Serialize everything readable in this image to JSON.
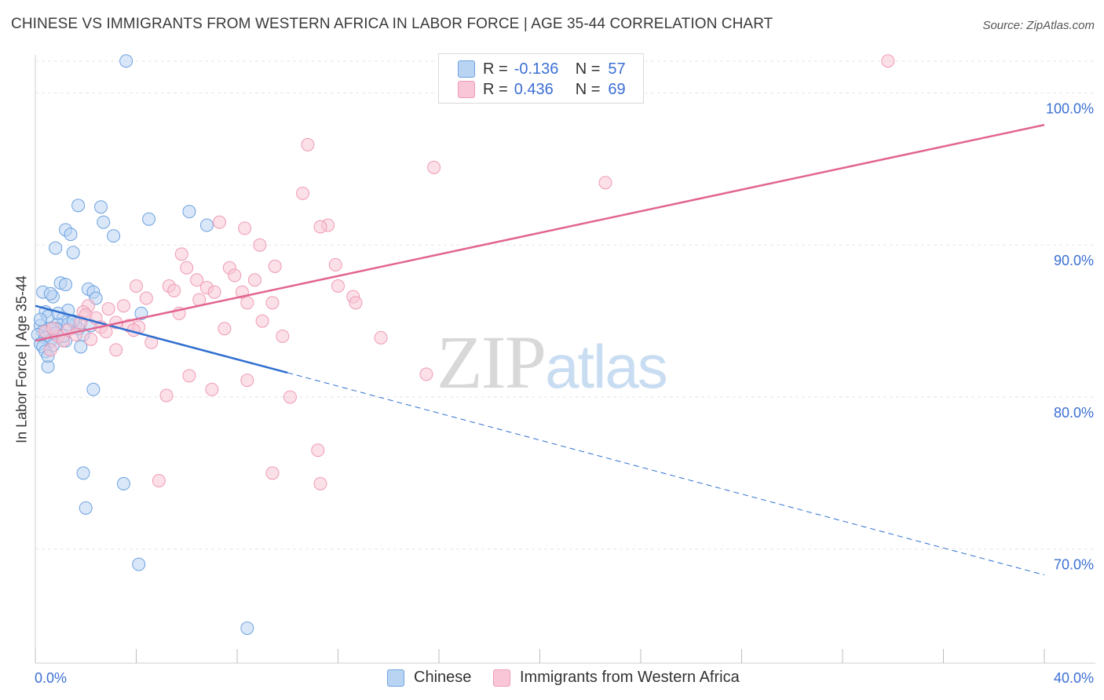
{
  "title": "CHINESE VS IMMIGRANTS FROM WESTERN AFRICA IN LABOR FORCE | AGE 35-44 CORRELATION CHART",
  "source": "Source: ZipAtlas.com",
  "watermark": {
    "zip": "ZIP",
    "atlas": "atlas"
  },
  "legend": {
    "r_label": "R =",
    "n_label": "N =",
    "rows": [
      {
        "r": "-0.136",
        "n": "57"
      },
      {
        "r": "0.436",
        "n": "69"
      }
    ]
  },
  "chart_data": {
    "type": "scatter",
    "xlabel": "",
    "ylabel": "In Labor Force | Age 35-44",
    "xlim": [
      0,
      40
    ],
    "ylim": [
      60,
      100
    ],
    "x_tick_labels": [
      {
        "value": 0,
        "label": "0.0%"
      },
      {
        "value": 40,
        "label": "40.0%"
      }
    ],
    "y_tick_labels": [
      {
        "value": 97.5,
        "label": "100.0%"
      },
      {
        "value": 87.5,
        "label": "90.0%"
      },
      {
        "value": 77.5,
        "label": "80.0%"
      },
      {
        "value": 67.5,
        "label": "70.0%"
      }
    ],
    "grid": true,
    "legend_position": "top-center",
    "series": [
      {
        "name": "Chinese",
        "color": "#6fa3e0",
        "fill": "#b9d3f3",
        "line_color": "#2f6fd0",
        "trend": {
          "x0": 0,
          "y0": 83.5,
          "x1": 10,
          "y1": 79.1,
          "dashed_to_x": 40,
          "dashed_y1": 65.8
        },
        "points": [
          [
            3.6,
            99.6
          ],
          [
            1.7,
            90.1
          ],
          [
            2.6,
            90.0
          ],
          [
            6.1,
            89.7
          ],
          [
            4.5,
            89.2
          ],
          [
            2.7,
            89.0
          ],
          [
            6.8,
            88.8
          ],
          [
            1.2,
            88.5
          ],
          [
            1.4,
            88.2
          ],
          [
            3.1,
            88.1
          ],
          [
            0.8,
            87.3
          ],
          [
            1.5,
            87.0
          ],
          [
            1.0,
            85.0
          ],
          [
            1.2,
            84.9
          ],
          [
            2.1,
            84.6
          ],
          [
            2.3,
            84.4
          ],
          [
            0.3,
            84.4
          ],
          [
            0.7,
            84.1
          ],
          [
            2.4,
            84.0
          ],
          [
            4.2,
            83.0
          ],
          [
            0.4,
            83.1
          ],
          [
            0.5,
            82.8
          ],
          [
            1.1,
            82.7
          ],
          [
            0.9,
            82.3
          ],
          [
            1.6,
            82.3
          ],
          [
            1.3,
            82.3
          ],
          [
            0.2,
            82.2
          ],
          [
            0.8,
            82.0
          ],
          [
            0.6,
            82.0
          ],
          [
            0.3,
            81.8
          ],
          [
            0.1,
            81.6
          ],
          [
            1.9,
            81.6
          ],
          [
            0.4,
            81.4
          ],
          [
            0.6,
            81.2
          ],
          [
            1.2,
            81.2
          ],
          [
            0.2,
            81.0
          ],
          [
            0.7,
            80.9
          ],
          [
            0.3,
            80.8
          ],
          [
            1.8,
            80.8
          ],
          [
            0.5,
            79.5
          ],
          [
            2.3,
            78.0
          ],
          [
            1.9,
            72.5
          ],
          [
            3.5,
            71.8
          ],
          [
            2.0,
            70.2
          ],
          [
            4.1,
            66.5
          ],
          [
            8.4,
            62.3
          ],
          [
            0.6,
            84.3
          ],
          [
            1.3,
            83.2
          ],
          [
            0.9,
            83.0
          ],
          [
            1.7,
            82.0
          ],
          [
            0.4,
            80.5
          ],
          [
            2.2,
            82.2
          ],
          [
            0.2,
            82.6
          ],
          [
            1.5,
            82.5
          ],
          [
            0.8,
            81.7
          ],
          [
            1.1,
            81.5
          ],
          [
            0.5,
            80.2
          ]
        ]
      },
      {
        "name": "Immigrants from Western Africa",
        "color": "#ef9bb5",
        "fill": "#f8c6d6",
        "line_color": "#e2658f",
        "trend": {
          "x0": 0,
          "y0": 81.2,
          "x1": 40,
          "y1": 95.4
        },
        "points": [
          [
            33.8,
            99.6
          ],
          [
            10.8,
            94.1
          ],
          [
            15.8,
            92.6
          ],
          [
            22.6,
            91.6
          ],
          [
            10.6,
            90.9
          ],
          [
            7.3,
            89.0
          ],
          [
            11.6,
            88.8
          ],
          [
            11.3,
            88.7
          ],
          [
            8.3,
            88.6
          ],
          [
            8.9,
            87.5
          ],
          [
            5.8,
            86.9
          ],
          [
            6.0,
            86.0
          ],
          [
            7.7,
            86.0
          ],
          [
            11.9,
            86.2
          ],
          [
            9.5,
            86.1
          ],
          [
            7.9,
            85.5
          ],
          [
            8.7,
            85.2
          ],
          [
            6.4,
            85.2
          ],
          [
            4.0,
            84.8
          ],
          [
            5.3,
            84.8
          ],
          [
            6.8,
            84.7
          ],
          [
            7.1,
            84.4
          ],
          [
            8.2,
            84.4
          ],
          [
            5.5,
            84.5
          ],
          [
            4.4,
            84.0
          ],
          [
            12.6,
            84.1
          ],
          [
            6.5,
            83.9
          ],
          [
            8.4,
            83.7
          ],
          [
            9.4,
            83.7
          ],
          [
            12.7,
            83.7
          ],
          [
            3.5,
            83.5
          ],
          [
            2.1,
            83.5
          ],
          [
            1.9,
            83.1
          ],
          [
            2.0,
            82.9
          ],
          [
            2.4,
            82.7
          ],
          [
            3.2,
            82.4
          ],
          [
            3.7,
            82.2
          ],
          [
            4.1,
            82.1
          ],
          [
            2.6,
            82.1
          ],
          [
            2.8,
            81.8
          ],
          [
            1.3,
            81.9
          ],
          [
            1.6,
            81.6
          ],
          [
            7.5,
            82.0
          ],
          [
            9.8,
            81.5
          ],
          [
            13.7,
            81.4
          ],
          [
            0.9,
            81.5
          ],
          [
            4.6,
            81.1
          ],
          [
            3.2,
            80.6
          ],
          [
            0.6,
            80.6
          ],
          [
            15.5,
            79.0
          ],
          [
            6.1,
            78.9
          ],
          [
            8.4,
            78.6
          ],
          [
            7.0,
            78.0
          ],
          [
            5.2,
            77.6
          ],
          [
            10.1,
            77.5
          ],
          [
            11.2,
            74.0
          ],
          [
            9.4,
            72.5
          ],
          [
            11.3,
            71.8
          ],
          [
            4.9,
            72.0
          ],
          [
            0.4,
            81.8
          ],
          [
            1.1,
            81.2
          ],
          [
            2.2,
            81.3
          ],
          [
            3.9,
            81.9
          ],
          [
            5.7,
            83.0
          ],
          [
            9.0,
            82.5
          ],
          [
            12.0,
            84.8
          ],
          [
            1.8,
            82.4
          ],
          [
            0.7,
            82.0
          ],
          [
            2.9,
            83.3
          ]
        ]
      }
    ]
  }
}
